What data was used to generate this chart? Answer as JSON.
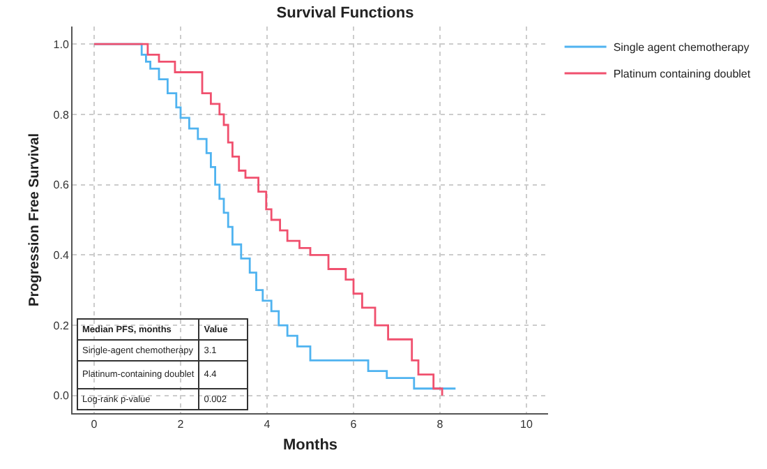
{
  "chart_data": {
    "type": "step",
    "title": "Survival Functions",
    "xlabel": "Months",
    "ylabel": "Progression Free Survival",
    "xlim": [
      -0.5,
      10.5
    ],
    "xticks": [
      0,
      2,
      4,
      6,
      8,
      10
    ],
    "ylim": [
      -0.05,
      1.05
    ],
    "yticks": [
      {
        "value": 0,
        "label": "0.0"
      },
      {
        "value": 0.2,
        "label": "0.2"
      },
      {
        "value": 0.4,
        "label": "0.4"
      },
      {
        "value": 0.6,
        "label": "0.6"
      },
      {
        "value": 0.8,
        "label": "0.8"
      },
      {
        "value": 1,
        "label": "1.0"
      }
    ],
    "grid": true,
    "legend": "top right",
    "marker": "none",
    "line_style": "solid",
    "series": [
      {
        "name": "Single agent chemotherapy",
        "color": "#4fb3f0",
        "x": [
          0,
          1.1,
          1.2,
          1.3,
          1.5,
          1.7,
          1.9,
          2.0,
          2.2,
          2.4,
          2.6,
          2.7,
          2.8,
          2.9,
          3.0,
          3.1,
          3.2,
          3.4,
          3.6,
          3.75,
          3.9,
          4.1,
          4.27,
          4.47,
          4.7,
          5.0,
          6.34,
          6.77,
          7.4,
          8.36
        ],
        "values": [
          1,
          0.97,
          0.95,
          0.93,
          0.9,
          0.86,
          0.82,
          0.79,
          0.76,
          0.73,
          0.69,
          0.65,
          0.6,
          0.56,
          0.52,
          0.48,
          0.43,
          0.39,
          0.35,
          0.3,
          0.27,
          0.24,
          0.2,
          0.17,
          0.14,
          0.1,
          0.07,
          0.05,
          0.02,
          0.02
        ]
      },
      {
        "name": "Platinum containing doublet",
        "color": "#f0506e",
        "x": [
          0,
          1.24,
          1.5,
          1.87,
          2.5,
          2.7,
          2.9,
          3.0,
          3.1,
          3.2,
          3.35,
          3.5,
          3.8,
          3.98,
          4.1,
          4.3,
          4.47,
          4.75,
          5.0,
          5.42,
          5.82,
          6.0,
          6.2,
          6.5,
          6.8,
          7.35,
          7.5,
          7.85,
          8.05
        ],
        "values": [
          1,
          0.97,
          0.95,
          0.92,
          0.86,
          0.83,
          0.8,
          0.77,
          0.72,
          0.68,
          0.64,
          0.62,
          0.58,
          0.53,
          0.5,
          0.47,
          0.44,
          0.42,
          0.4,
          0.36,
          0.33,
          0.29,
          0.25,
          0.2,
          0.16,
          0.1,
          0.06,
          0.02,
          0
        ]
      }
    ],
    "annotations": [
      "Median PFS, months",
      "Value",
      "Single-agent chemotherapy",
      "3.1",
      "Platinum-containing doublet",
      "4.4",
      "Log-rank p-value",
      "0.002"
    ]
  }
}
